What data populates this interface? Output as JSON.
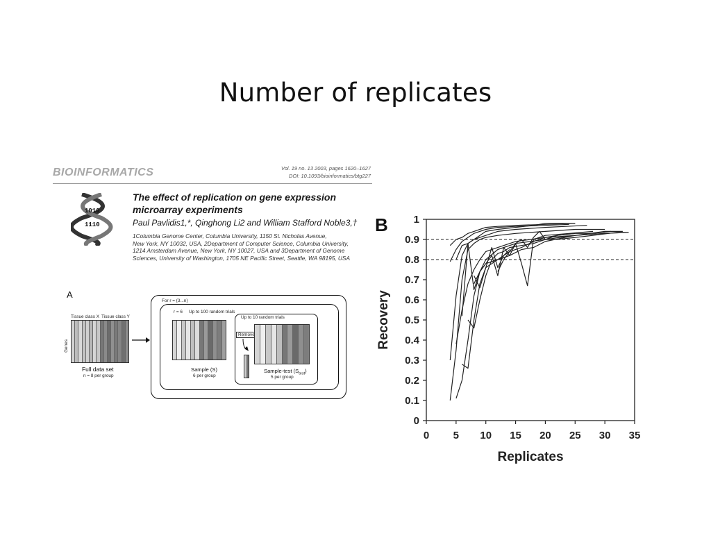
{
  "slide": {
    "title": "Number of replicates"
  },
  "paper": {
    "journal": "BIOINFORMATICS",
    "vol_line1": "Vol. 19 no. 13 2003, pages 1620–1627",
    "vol_line2": "DOI: 10.1093/bioinformatics/btg227",
    "title_line1": "The effect of replication on gene expression",
    "title_line2": "microarray experiments",
    "authors": "Paul Pavlidis1,*, Qinghong Li2 and William Stafford Noble3,†",
    "affil_line1": "1Columbia Genome Center, Columbia University, 1150 St. Nicholas Avenue,",
    "affil_line2": "New York, NY 10032, USA, 2Department of Computer Science, Columbia University,",
    "affil_line3": "1214 Amsterdam Avenue, New York, NY 10027, USA and 3Department of Genome",
    "affil_line4": "Sciences, University of Washington, 1705 NE Pacific Street, Seattle, WA 98195, USA",
    "logo_icon": "dna-helix-icon"
  },
  "figure_a": {
    "letter": "A",
    "tissue_x": "Tissue class X",
    "tissue_y": "Tissue class Y",
    "genes": "Genes",
    "full_label": "Full data set",
    "full_sub": "n = 8 per group",
    "outer_label": "For r = {3...n}",
    "mid_r": "r = 6",
    "mid_trials": "Up to 100 random trials",
    "sample_label": "Sample (S)",
    "sample_sub": "6 per group",
    "inner_trials": "Up to 10 random trials",
    "remove": "Remove",
    "test_label": "Sample-test  (S",
    "test_sub_script": "test",
    "test_close": ")",
    "test_sub": "5 per group"
  },
  "figure_b": {
    "letter": "B",
    "chart_data": {
      "type": "line",
      "xlabel": "Replicates",
      "ylabel": "Recovery",
      "xlim": [
        0,
        35
      ],
      "ylim": [
        0,
        1
      ],
      "xticks": [
        "0",
        "5",
        "10",
        "15",
        "20",
        "25",
        "30",
        "35"
      ],
      "yticks": [
        "0",
        "0.1",
        "0.2",
        "0.3",
        "0.4",
        "0.5",
        "0.6",
        "0.7",
        "0.8",
        "0.9",
        "1"
      ],
      "reference_lines": [
        0.8,
        0.9
      ],
      "grid": false,
      "series": [
        {
          "x": [
            4,
            5,
            6,
            7,
            8,
            9,
            10,
            12,
            15,
            20,
            25
          ],
          "y": [
            0.87,
            0.9,
            0.91,
            0.93,
            0.94,
            0.95,
            0.96,
            0.965,
            0.97,
            0.975,
            0.98
          ]
        },
        {
          "x": [
            4,
            5,
            6,
            7,
            8,
            10,
            12,
            15,
            20,
            24
          ],
          "y": [
            0.79,
            0.85,
            0.89,
            0.91,
            0.93,
            0.95,
            0.96,
            0.965,
            0.97,
            0.975
          ]
        },
        {
          "x": [
            4,
            5,
            6,
            7,
            8,
            10,
            12,
            15,
            20,
            27
          ],
          "y": [
            0.3,
            0.62,
            0.82,
            0.88,
            0.9,
            0.92,
            0.94,
            0.95,
            0.96,
            0.97
          ]
        },
        {
          "x": [
            4,
            5,
            6,
            7,
            8,
            9,
            10,
            12,
            15,
            20,
            25,
            30
          ],
          "y": [
            0.1,
            0.35,
            0.7,
            0.85,
            0.88,
            0.9,
            0.91,
            0.92,
            0.93,
            0.94,
            0.95,
            0.95
          ]
        },
        {
          "x": [
            5,
            6,
            7,
            8,
            9,
            10,
            12,
            15,
            20,
            25,
            30,
            34
          ],
          "y": [
            0.11,
            0.2,
            0.4,
            0.62,
            0.74,
            0.8,
            0.85,
            0.88,
            0.9,
            0.92,
            0.93,
            0.935
          ]
        },
        {
          "x": [
            5,
            6,
            7,
            8,
            9,
            10,
            12,
            15,
            20,
            25,
            30,
            33
          ],
          "y": [
            0.38,
            0.55,
            0.68,
            0.75,
            0.8,
            0.84,
            0.86,
            0.89,
            0.91,
            0.92,
            0.94,
            0.94
          ]
        },
        {
          "x": [
            6,
            7,
            8,
            9,
            10,
            12,
            14,
            16,
            18,
            20,
            25,
            30
          ],
          "y": [
            0.28,
            0.26,
            0.5,
            0.68,
            0.76,
            0.8,
            0.82,
            0.85,
            0.86,
            0.89,
            0.92,
            0.93
          ]
        },
        {
          "x": [
            7,
            8,
            9,
            10,
            11,
            12,
            13,
            14,
            16,
            18,
            20,
            22,
            25,
            28,
            32,
            34
          ],
          "y": [
            0.5,
            0.46,
            0.6,
            0.72,
            0.8,
            0.83,
            0.84,
            0.86,
            0.87,
            0.88,
            0.9,
            0.9,
            0.91,
            0.92,
            0.935,
            0.935
          ]
        },
        {
          "x": [
            6,
            7,
            8,
            9,
            10,
            11,
            12,
            13,
            14,
            15,
            16,
            17,
            18,
            19,
            20,
            22,
            25,
            28,
            31
          ],
          "y": [
            0.52,
            0.88,
            0.65,
            0.74,
            0.78,
            0.82,
            0.72,
            0.86,
            0.82,
            0.88,
            0.9,
            0.86,
            0.91,
            0.94,
            0.9,
            0.92,
            0.93,
            0.93,
            0.94
          ]
        },
        {
          "x": [
            8,
            9,
            10,
            12,
            14,
            16,
            18,
            20,
            22,
            25
          ],
          "y": [
            0.68,
            0.74,
            0.78,
            0.8,
            0.84,
            0.86,
            0.89,
            0.91,
            0.92,
            0.93
          ]
        },
        {
          "x": [
            12,
            13,
            14,
            15,
            16,
            17,
            18,
            20,
            24,
            28
          ],
          "y": [
            0.74,
            0.8,
            0.84,
            0.88,
            0.78,
            0.67,
            0.9,
            0.92,
            0.93,
            0.94
          ]
        },
        {
          "x": [
            8,
            9,
            10,
            11,
            12,
            13,
            14
          ],
          "y": [
            0.72,
            0.66,
            0.76,
            0.86,
            0.76,
            0.82,
            0.85
          ]
        },
        {
          "x": [
            5,
            6,
            7,
            8,
            9,
            10,
            12,
            15,
            18,
            20,
            25
          ],
          "y": [
            0.8,
            0.87,
            0.88,
            0.9,
            0.92,
            0.94,
            0.95,
            0.96,
            0.97,
            0.98,
            0.98
          ]
        }
      ]
    }
  }
}
